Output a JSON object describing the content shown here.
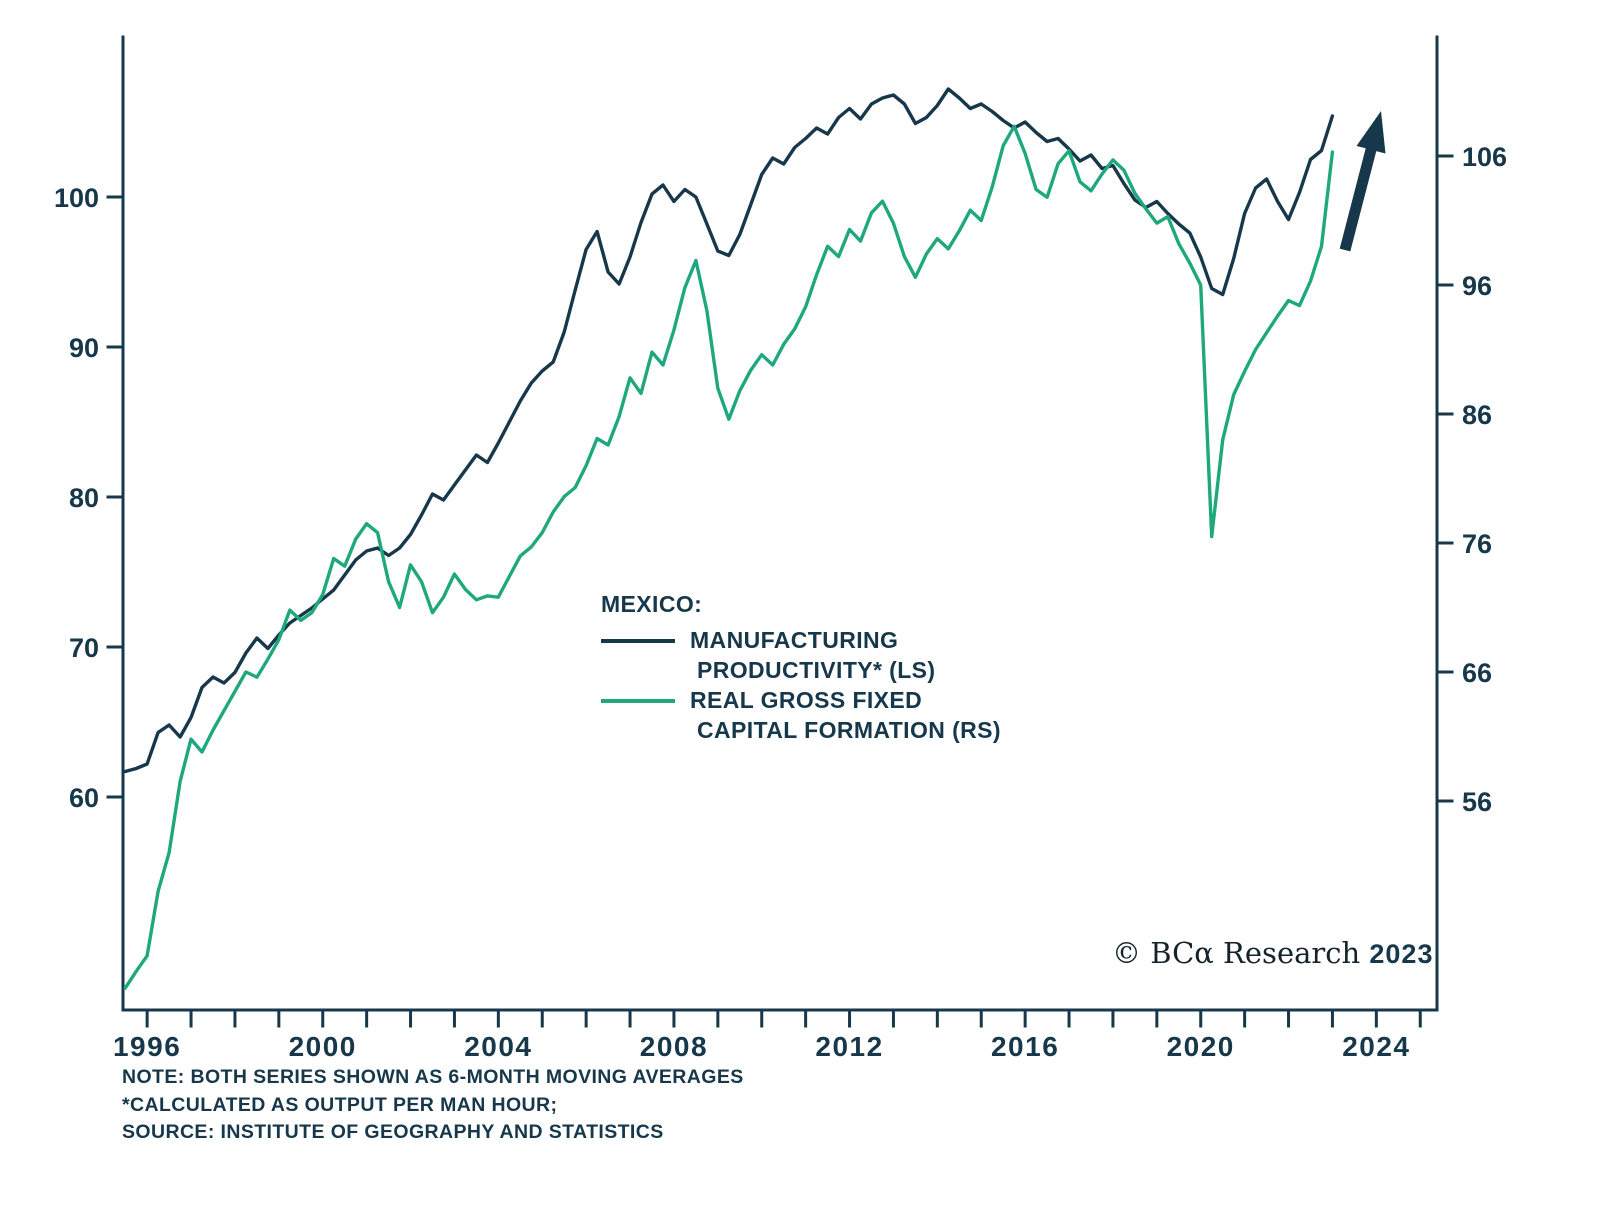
{
  "colors": {
    "navy": "#17384a",
    "green": "#1fa87c",
    "text": "#17384a",
    "background": "#ffffff"
  },
  "legend": {
    "title": "MEXICO:",
    "series": [
      {
        "line1": "MANUFACTURING",
        "line2": "PRODUCTIVITY* (LS)",
        "color": "#17384a"
      },
      {
        "line1": "REAL GROSS FIXED",
        "line2": "CAPITAL FORMATION (RS)",
        "color": "#1fa87c"
      }
    ]
  },
  "copyright": {
    "brand": "© BCα Research",
    "year": "2023"
  },
  "notes": [
    "NOTE: BOTH SERIES SHOWN AS 6-MONTH MOVING AVERAGES",
    "*CALCULATED AS OUTPUT PER MAN HOUR;",
    "SOURCE: INSTITUTE OF GEOGRAPHY AND STATISTICS"
  ],
  "chart_data": {
    "type": "line",
    "title": "MEXICO: MANUFACTURING PRODUCTIVITY vs REAL GROSS FIXED CAPITAL FORMATION",
    "x_start": 1995.5,
    "x_step": 0.25,
    "x_axis": {
      "major_ticks": [
        1996,
        2000,
        2004,
        2008,
        2012,
        2016,
        2020,
        2024
      ],
      "minor_tick_start": 1996,
      "minor_tick_end": 2025,
      "range": [
        1995.45,
        2025.4
      ]
    },
    "left_axis": {
      "ticks": [
        100,
        90,
        80,
        70,
        60
      ],
      "range": [
        46,
        111
      ]
    },
    "right_axis": {
      "ticks": [
        106,
        96,
        86,
        76,
        66,
        56
      ],
      "range": [
        40,
        115
      ]
    },
    "grid": false,
    "legend_position": "center",
    "series": [
      {
        "id": "manufacturing-productivity",
        "name": "MANUFACTURING PRODUCTIVITY* (LS)",
        "axis": "left",
        "color": "#17384a",
        "values": [
          61.7,
          61.9,
          62.2,
          64.3,
          64.8,
          64.0,
          65.3,
          67.3,
          68.0,
          67.6,
          68.3,
          69.6,
          70.6,
          69.9,
          70.8,
          71.6,
          72.1,
          72.6,
          73.2,
          73.8,
          74.8,
          75.8,
          76.4,
          76.6,
          76.1,
          76.6,
          77.5,
          78.8,
          80.2,
          79.8,
          80.8,
          81.8,
          82.8,
          82.3,
          83.6,
          85.0,
          86.4,
          87.6,
          88.4,
          89.0,
          91.0,
          93.8,
          96.5,
          97.7,
          95.0,
          94.2,
          96.0,
          98.3,
          100.2,
          100.8,
          99.7,
          100.5,
          100.0,
          98.2,
          96.4,
          96.1,
          97.5,
          99.5,
          101.5,
          102.6,
          102.2,
          103.3,
          103.9,
          104.6,
          104.2,
          105.3,
          105.9,
          105.2,
          106.2,
          106.6,
          106.8,
          106.2,
          104.9,
          105.3,
          106.1,
          107.2,
          106.6,
          105.9,
          106.2,
          105.7,
          105.1,
          104.6,
          105.0,
          104.3,
          103.7,
          103.9,
          103.2,
          102.4,
          102.8,
          101.9,
          102.1,
          100.9,
          99.8,
          99.3,
          99.7,
          98.9,
          98.2,
          97.6,
          96.0,
          93.9,
          93.5,
          95.9,
          98.9,
          100.6,
          101.2,
          99.7,
          98.5,
          100.3,
          102.5,
          103.1,
          105.4
        ]
      },
      {
        "id": "capital-formation",
        "name": "REAL GROSS FIXED CAPITAL FORMATION (RS)",
        "axis": "right",
        "color": "#1fa87c",
        "values": [
          41.5,
          42.8,
          44.0,
          49.0,
          52.0,
          57.5,
          60.8,
          59.8,
          61.5,
          63.0,
          64.5,
          66.0,
          65.6,
          67.0,
          68.5,
          70.8,
          70.0,
          70.6,
          72.0,
          74.8,
          74.2,
          76.3,
          77.5,
          76.8,
          73.0,
          71.0,
          74.3,
          73.0,
          70.6,
          71.8,
          73.6,
          72.4,
          71.6,
          71.9,
          71.8,
          73.4,
          75.0,
          75.7,
          76.8,
          78.4,
          79.6,
          80.3,
          82.0,
          84.1,
          83.6,
          85.8,
          88.8,
          87.6,
          90.8,
          89.8,
          92.5,
          95.8,
          97.9,
          94.0,
          88.0,
          85.6,
          87.8,
          89.4,
          90.6,
          89.8,
          91.4,
          92.6,
          94.3,
          96.8,
          99.0,
          98.2,
          100.3,
          99.4,
          101.6,
          102.5,
          100.8,
          98.2,
          96.6,
          98.4,
          99.6,
          98.8,
          100.2,
          101.8,
          101.0,
          103.6,
          106.8,
          108.3,
          106.2,
          103.4,
          102.8,
          105.4,
          106.4,
          104.0,
          103.3,
          104.6,
          105.7,
          104.9,
          103.1,
          101.9,
          100.8,
          101.3,
          99.2,
          97.7,
          96.0,
          76.5,
          84.0,
          87.5,
          89.3,
          91.0,
          92.3,
          93.6,
          94.8,
          94.4,
          96.3,
          99.0,
          106.3
        ]
      }
    ]
  }
}
